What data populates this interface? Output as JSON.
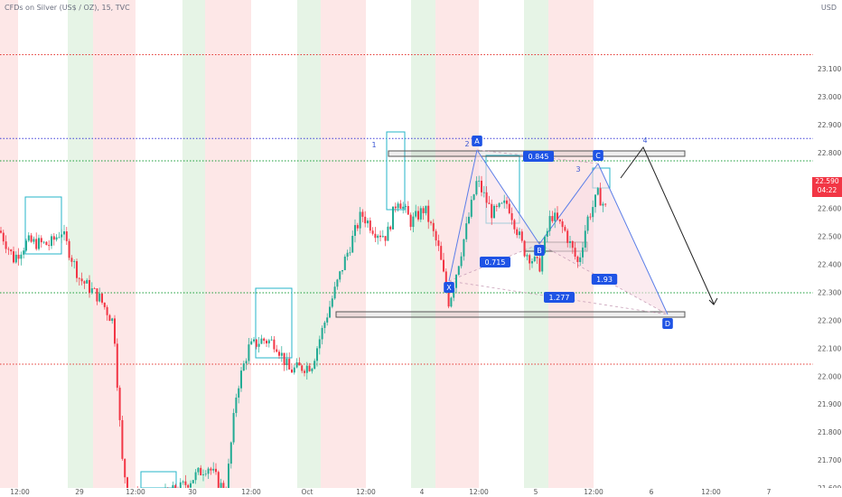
{
  "header": {
    "title": "CFDs on Silver (US$ / OZ), 15, TVC",
    "currency": "USD"
  },
  "price_axis": {
    "labels": [
      "23.100",
      "23.000",
      "22.900",
      "22.800",
      "22.700",
      "22.600",
      "22.500",
      "22.400",
      "22.300",
      "22.200",
      "22.100",
      "22.000",
      "21.900",
      "21.800",
      "21.700",
      "21.600"
    ],
    "current_price": "22.590",
    "countdown": "04:22"
  },
  "time_axis": {
    "labels": [
      "12:00",
      "29",
      "12:00",
      "30",
      "12:00",
      "Oct",
      "12:00",
      "4",
      "12:00",
      "5",
      "12:00",
      "6",
      "12:00",
      "7"
    ]
  },
  "pattern": {
    "points": [
      "X",
      "A",
      "B",
      "C",
      "D"
    ],
    "ratios": [
      "0.845",
      "0.715",
      "1.93",
      "1.277"
    ],
    "waves": [
      "1",
      "2",
      "3",
      "4"
    ]
  },
  "colors": {
    "red_zone": "#fde7e7",
    "green_zone": "#e6f4e6",
    "bull": "#22ab94",
    "bear": "#f23645",
    "pattern_blue": "#1e53e5",
    "pattern_fill": "#f9dde6",
    "level_red": "#e53935",
    "level_blue": "#3f3fd8",
    "level_green": "#1a9e3a"
  }
}
